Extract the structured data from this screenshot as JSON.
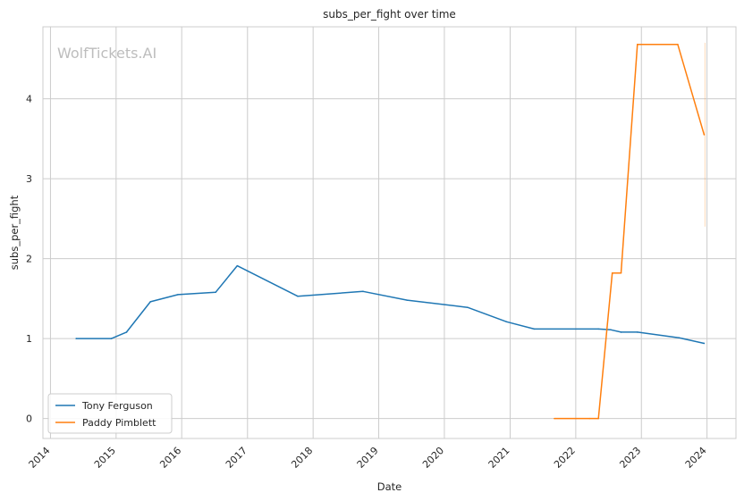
{
  "chart_data": {
    "type": "line",
    "title": "subs_per_fight over time",
    "xlabel": "Date",
    "ylabel": "subs_per_fight",
    "watermark": "WolfTickets.AI",
    "x_ticks": [
      "2014",
      "2015",
      "2016",
      "2017",
      "2018",
      "2019",
      "2020",
      "2021",
      "2022",
      "2023",
      "2024"
    ],
    "y_ticks": [
      "0",
      "1",
      "2",
      "3",
      "4"
    ],
    "xlim": [
      "2013-11-20",
      "2024-06-10"
    ],
    "ylim": [
      -0.25,
      4.9
    ],
    "grid": true,
    "legend_position": "lower-left",
    "series": [
      {
        "name": "Tony Ferguson",
        "color": "#1f77b4",
        "points": [
          [
            "2014-05-24",
            1.0
          ],
          [
            "2014-12-06",
            1.0
          ],
          [
            "2015-02-28",
            1.08
          ],
          [
            "2015-07-11",
            1.46
          ],
          [
            "2015-12-11",
            1.55
          ],
          [
            "2016-07-08",
            1.58
          ],
          [
            "2016-11-05",
            1.91
          ],
          [
            "2017-10-07",
            1.53
          ],
          [
            "2018-10-06",
            1.59
          ],
          [
            "2019-06-08",
            1.48
          ],
          [
            "2020-05-09",
            1.39
          ],
          [
            "2020-12-12",
            1.21
          ],
          [
            "2021-05-15",
            1.12
          ],
          [
            "2022-05-07",
            1.12
          ],
          [
            "2022-07-15",
            1.11
          ],
          [
            "2022-09-10",
            1.08
          ],
          [
            "2022-12-10",
            1.08
          ],
          [
            "2023-07-29",
            1.01
          ],
          [
            "2023-12-16",
            0.94
          ]
        ]
      },
      {
        "name": "Paddy Pimblett",
        "color": "#ff7f0e",
        "points": [
          [
            "2021-09-04",
            0.0
          ],
          [
            "2022-03-19",
            0.0
          ],
          [
            "2022-05-07",
            0.0
          ],
          [
            "2022-07-23",
            1.82
          ],
          [
            "2022-09-10",
            1.82
          ],
          [
            "2022-12-10",
            4.68
          ],
          [
            "2023-07-22",
            4.68
          ],
          [
            "2023-12-16",
            3.55
          ]
        ]
      }
    ]
  }
}
